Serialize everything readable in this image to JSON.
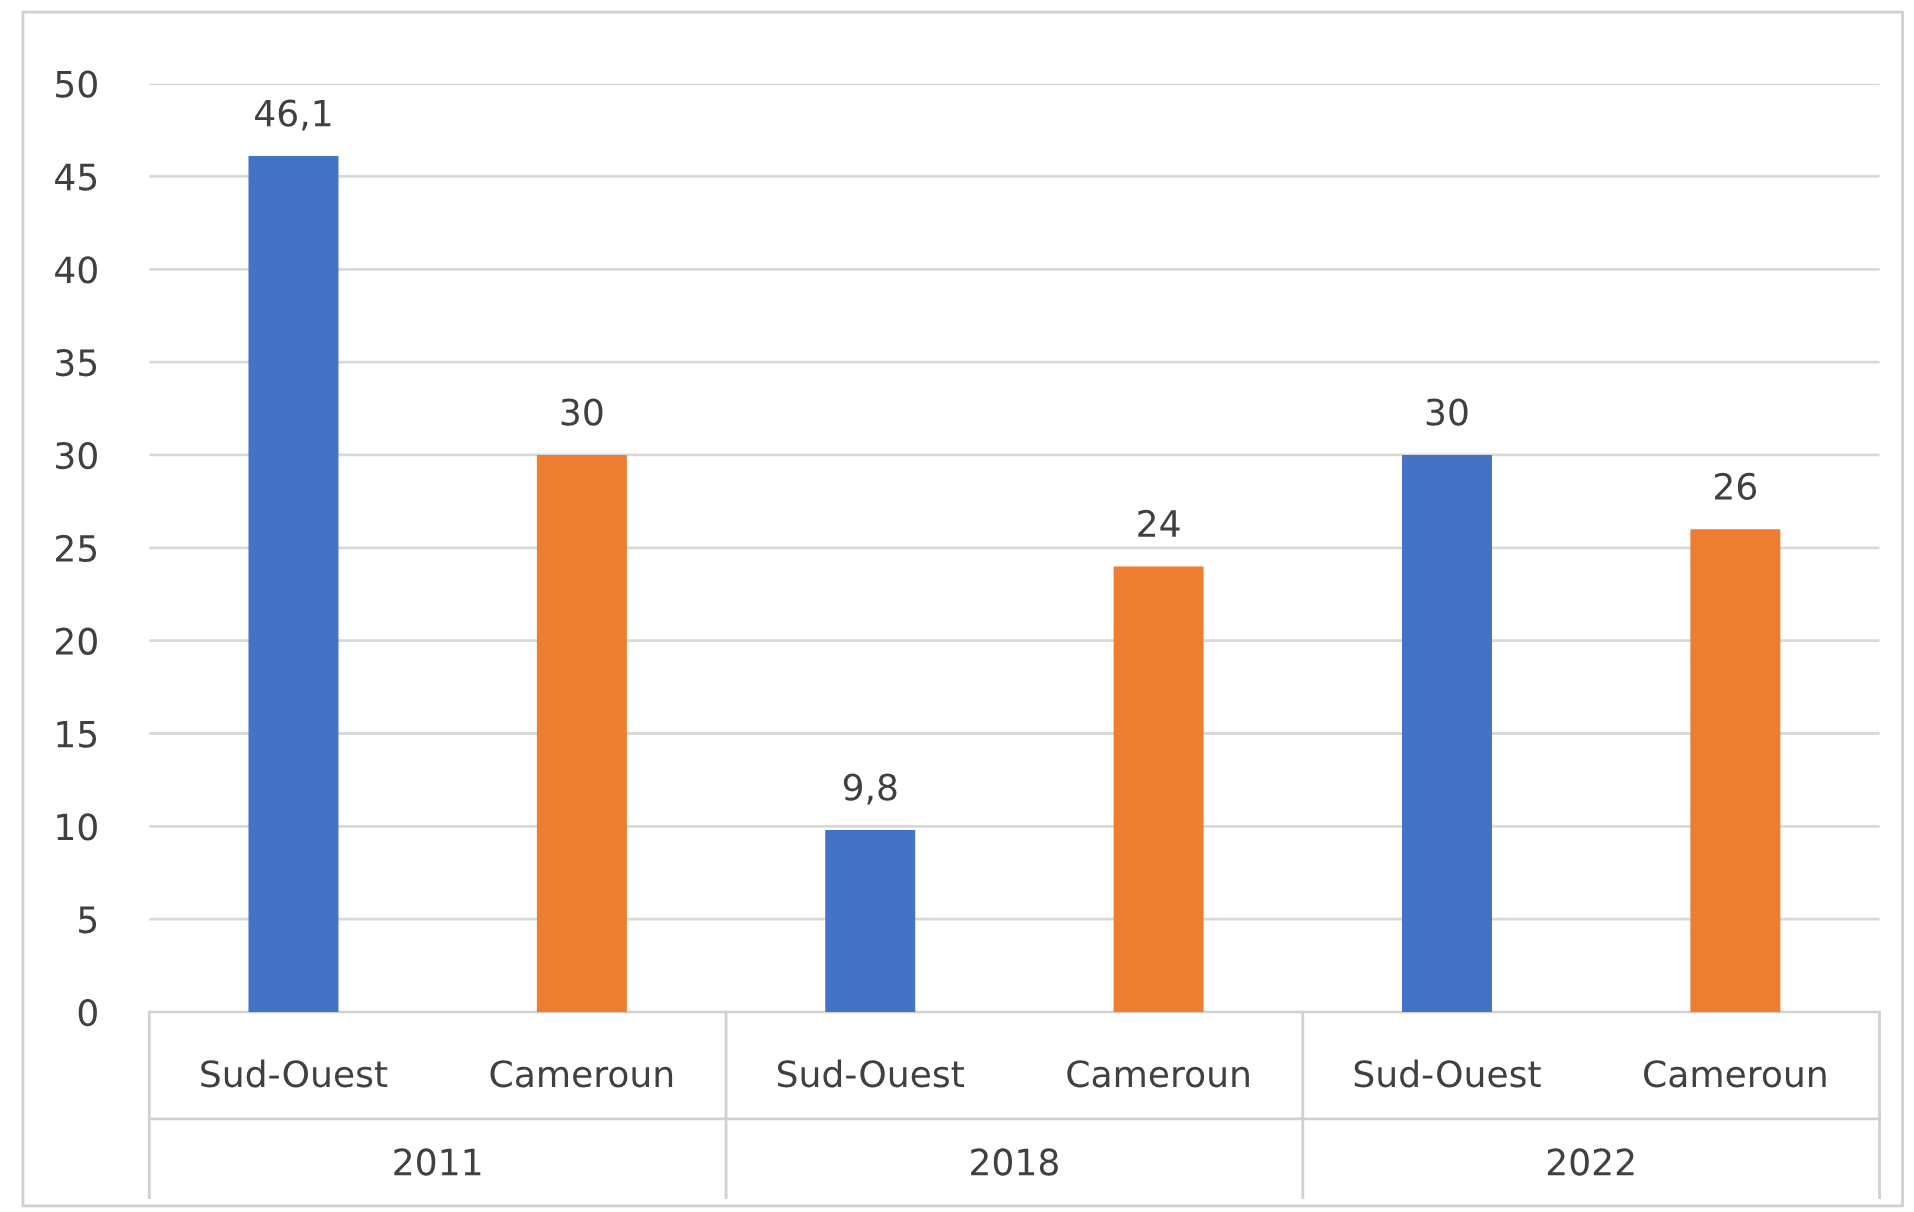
{
  "chart_data": {
    "type": "bar",
    "categories": [
      "2011",
      "2018",
      "2022"
    ],
    "series": [
      {
        "name": "Sud-Ouest",
        "color": "#4472c4",
        "values": [
          46.1,
          9.8,
          30
        ],
        "value_labels": [
          "46,1",
          "9,8",
          "30"
        ]
      },
      {
        "name": "Cameroun",
        "color": "#ed7d31",
        "values": [
          30,
          24,
          26
        ],
        "value_labels": [
          "30",
          "24",
          "26"
        ]
      }
    ],
    "ylim": [
      0,
      50
    ],
    "yticks": [
      0,
      5,
      10,
      15,
      20,
      25,
      30,
      35,
      40,
      45,
      50
    ],
    "grid": "y",
    "legend": false
  }
}
